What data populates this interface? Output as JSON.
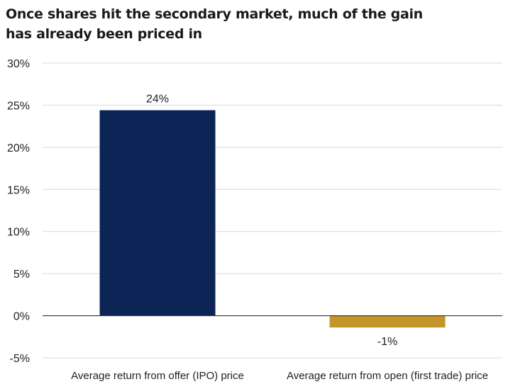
{
  "title_lines": [
    "Once shares hit the secondary market, much of the gain",
    "has already been priced in"
  ],
  "chart_data": {
    "type": "bar",
    "title": "Once shares hit the secondary market, much of the gain has already been priced in",
    "categories": [
      "Average return from offer (IPO) price",
      "Average return from open (first trade) price"
    ],
    "values": [
      24.4,
      -1.4
    ],
    "data_labels": [
      "24%",
      "-1%"
    ],
    "colors": [
      "#0d2457",
      "#c4962a"
    ],
    "ylim": [
      -5,
      30
    ],
    "yticks": [
      30,
      25,
      20,
      15,
      10,
      5,
      0,
      -5
    ],
    "ytick_labels": [
      "30%",
      "25%",
      "20%",
      "15%",
      "10%",
      "5%",
      "0%",
      "-5%"
    ],
    "grid": true,
    "legend": "none"
  }
}
